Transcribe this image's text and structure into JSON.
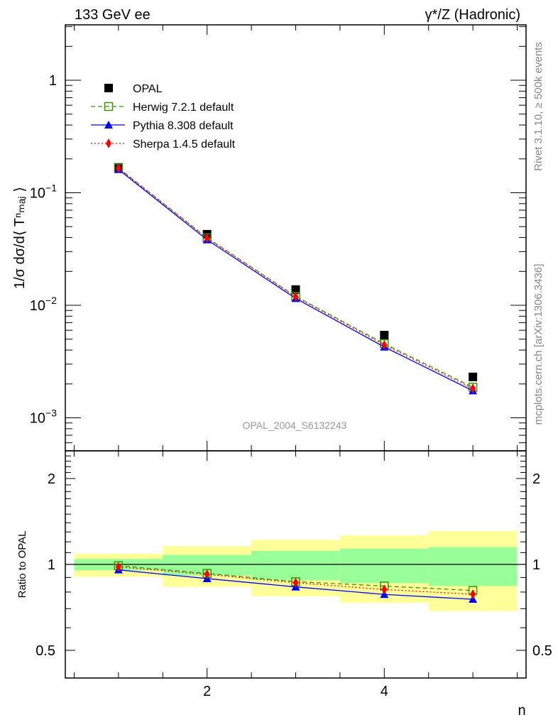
{
  "chart_data": [
    {
      "type": "line",
      "title_left": "133 GeV ee",
      "title_right": "γ*/Z (Hadronic)",
      "ylabel": "1/σ dσ/d⟨ T^n_maj ⟩",
      "yscale": "log",
      "ylim": [
        0.0005,
        3.1
      ],
      "xlim": [
        0.4,
        5.6
      ],
      "ytick_labels": [
        "1",
        "10^-1",
        "10^-2",
        "10^-3"
      ],
      "x": [
        1,
        2,
        3,
        4,
        5
      ],
      "series": [
        {
          "name": "OPAL",
          "values": [
            0.168,
            0.0428,
            0.0138,
            0.00543,
            0.00231
          ],
          "color": "#000000",
          "marker": "square"
        },
        {
          "name": "Herwig 7.2.1 default",
          "values": [
            0.166,
            0.0398,
            0.012,
            0.00456,
            0.00187
          ],
          "color": "#339900",
          "marker": "open-square",
          "style": "dashed"
        },
        {
          "name": "Pythia 8.308 default",
          "values": [
            0.161,
            0.0382,
            0.01151,
            0.00426,
            0.00174
          ],
          "color": "#0000ff",
          "marker": "triangle",
          "style": "solid"
        },
        {
          "name": "Sherpa 1.4.5 default",
          "values": [
            0.165,
            0.0395,
            0.01191,
            0.00444,
            0.00182
          ],
          "color": "#ff0000",
          "marker": "diamond",
          "style": "dotted"
        }
      ],
      "legend": "top-left",
      "watermark": "OPAL_2004_S6132243"
    },
    {
      "type": "line",
      "ylabel": "Ratio to OPAL",
      "xlabel": "n",
      "yscale": "log",
      "ylim": [
        0.4,
        2.5
      ],
      "xlim": [
        0.4,
        5.6
      ],
      "ytick_labels": [
        "0.5",
        "1",
        "2"
      ],
      "xtick_labels": [
        "2",
        "4"
      ],
      "bins": [
        [
          0.5,
          1.5
        ],
        [
          1.5,
          2.5
        ],
        [
          2.5,
          3.5
        ],
        [
          3.5,
          4.5
        ],
        [
          4.5,
          5.5
        ]
      ],
      "band_outer": {
        "lo": [
          0.904,
          0.834,
          0.773,
          0.733,
          0.686
        ],
        "hi": [
          1.09,
          1.16,
          1.22,
          1.265,
          1.31
        ],
        "color": "#ffff99"
      },
      "band_inner": {
        "lo": [
          0.953,
          0.914,
          0.88,
          0.86,
          0.84
        ],
        "hi": [
          1.045,
          1.08,
          1.115,
          1.136,
          1.15
        ],
        "color": "#99ff99"
      },
      "series": [
        {
          "name": "Herwig 7.2.1 default",
          "values": [
            0.99,
            0.93,
            0.87,
            0.84,
            0.81
          ]
        },
        {
          "name": "Pythia 8.308 default",
          "values": [
            0.957,
            0.892,
            0.834,
            0.785,
            0.755
          ]
        },
        {
          "name": "Sherpa 1.4.5 default",
          "values": [
            0.98,
            0.923,
            0.863,
            0.817,
            0.786
          ]
        }
      ]
    }
  ],
  "side_text": {
    "rivet": "Rivet 3.1.10, ≥ 500k events",
    "mcplots": "mcplots.cern.ch [arXiv:1306.3436]"
  }
}
